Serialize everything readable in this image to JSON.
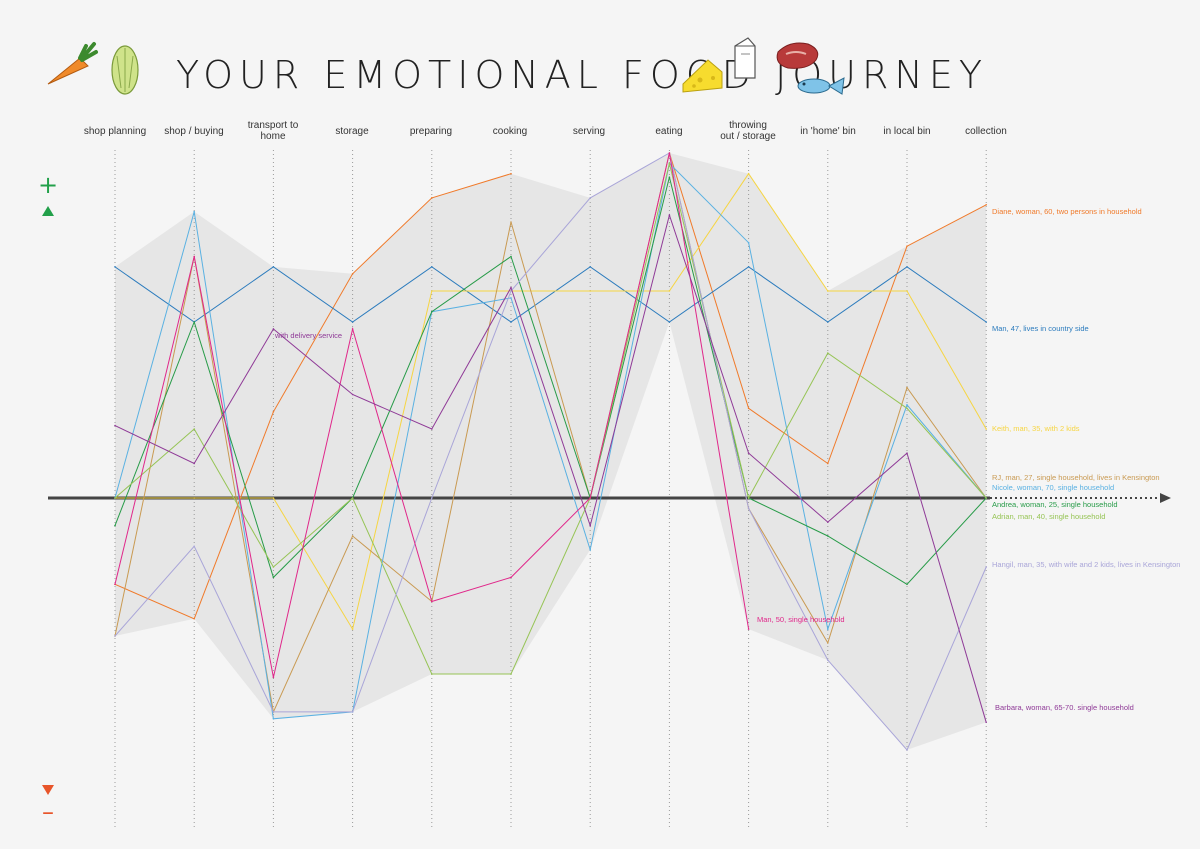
{
  "title": "YOUR EMOTIONAL FOOD JOURNEY",
  "icons": [
    "carrot-icon",
    "lettuce-icon",
    "cheese-icon",
    "milk-carton-icon",
    "steak-icon",
    "fish-icon"
  ],
  "axis": {
    "positive_symbol": "+",
    "negative_symbol": "–",
    "positive_color": "#22a04a",
    "negative_color": "#e8552a"
  },
  "chart_data": {
    "type": "line",
    "title": "YOUR EMOTIONAL FOOD JOURNEY",
    "categories": [
      "shop planning",
      "shop / buying",
      "transport to home",
      "storage",
      "preparing",
      "cooking",
      "serving",
      "eating",
      "throwing out / storage",
      "in 'home' bin",
      "in local bin",
      "collection"
    ],
    "ylim": [
      -1,
      1
    ],
    "grid": "dotted vertical lines at each stage",
    "envelope": {
      "color": "#e6e6e6",
      "description": "grey band between min and max of all series"
    },
    "annotations": [
      {
        "text": "with delivery service",
        "series": "Barbara, woman, 65-70. single household",
        "stage": "transport to home"
      }
    ],
    "series": [
      {
        "name": "Diane, woman, 60, two persons in household",
        "color": "#f07a2a",
        "values": [
          -0.25,
          -0.35,
          0.25,
          0.65,
          0.87,
          0.94,
          null,
          1.0,
          0.26,
          0.1,
          0.73,
          0.85
        ]
      },
      {
        "name": "Man, 47, lives in country side",
        "color": "#2b7bbd",
        "values": [
          0.67,
          0.51,
          0.67,
          0.51,
          0.67,
          0.51,
          0.67,
          0.51,
          0.67,
          0.51,
          0.67,
          0.51
        ]
      },
      {
        "name": "Keith, man, 35, with 2 kids",
        "color": "#f6d542",
        "values": [
          0.0,
          0.0,
          0.0,
          -0.38,
          0.6,
          0.6,
          0.6,
          0.6,
          0.94,
          0.6,
          0.6,
          0.2
        ]
      },
      {
        "name": "RJ, man, 27, single household, lives in Kensington",
        "color": "#c99a52",
        "values": [
          -0.4,
          0.7,
          -0.62,
          -0.11,
          -0.3,
          0.8,
          0.0,
          1.0,
          -0.03,
          -0.42,
          0.32,
          0.0
        ]
      },
      {
        "name": "Nicole, woman, 70, single household",
        "color": "#5ab1e2",
        "values": [
          0.0,
          0.83,
          -0.64,
          -0.62,
          0.54,
          0.58,
          -0.15,
          0.97,
          0.74,
          -0.38,
          0.27,
          0.0
        ]
      },
      {
        "name": "Andrea, woman, 25, single household",
        "color": "#279b48",
        "values": [
          -0.08,
          0.51,
          -0.23,
          0.0,
          0.54,
          0.7,
          0.0,
          0.93,
          0.0,
          -0.11,
          -0.25,
          0.0
        ]
      },
      {
        "name": "Adrian, man, 40, single household",
        "color": "#96c455",
        "values": [
          0.0,
          0.2,
          -0.2,
          0.0,
          -0.51,
          -0.51,
          0.0,
          0.97,
          0.0,
          0.42,
          0.26,
          0.0
        ]
      },
      {
        "name": "Hangil, man, 35, with wife and 2 kids, lives in Kensington",
        "color": "#a9a5d8",
        "values": [
          -0.4,
          -0.14,
          -0.62,
          -0.62,
          0.0,
          0.6,
          0.87,
          1.0,
          -0.03,
          -0.47,
          -0.73,
          -0.2
        ]
      },
      {
        "name": "Man, 50, single household",
        "color": "#e0278a",
        "values": [
          -0.25,
          0.7,
          -0.52,
          0.49,
          -0.3,
          -0.23,
          0.0,
          1.0,
          -0.38,
          null,
          null,
          null
        ]
      },
      {
        "name": "Barbara, woman, 65-70. single household",
        "color": "#8f3a97",
        "values": [
          0.21,
          0.1,
          0.49,
          0.3,
          0.2,
          0.61,
          -0.08,
          0.82,
          0.13,
          -0.07,
          0.13,
          -0.65
        ]
      }
    ]
  }
}
